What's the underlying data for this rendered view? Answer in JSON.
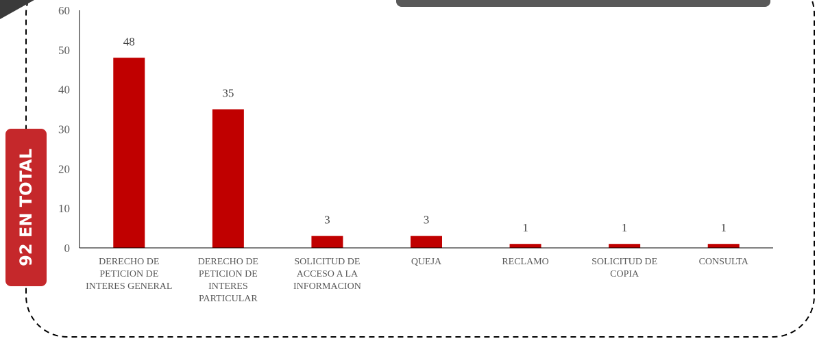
{
  "chart_data": {
    "type": "bar",
    "annotation": "92 EN TOTAL",
    "categories": [
      "DERECHO DE PETICION DE INTERES GENERAL",
      "DERECHO DE PETICION DE INTERES PARTICULAR",
      "SOLICITUD DE ACCESO A LA INFORMACION",
      "QUEJA",
      "RECLAMO",
      "SOLICITUD DE COPIA",
      "CONSULTA"
    ],
    "values": [
      48,
      35,
      3,
      3,
      1,
      1,
      1
    ],
    "color": "#c00000",
    "ylim": [
      0,
      60
    ],
    "yticks": [
      0,
      10,
      20,
      30,
      40,
      50,
      60
    ],
    "grid": false
  }
}
